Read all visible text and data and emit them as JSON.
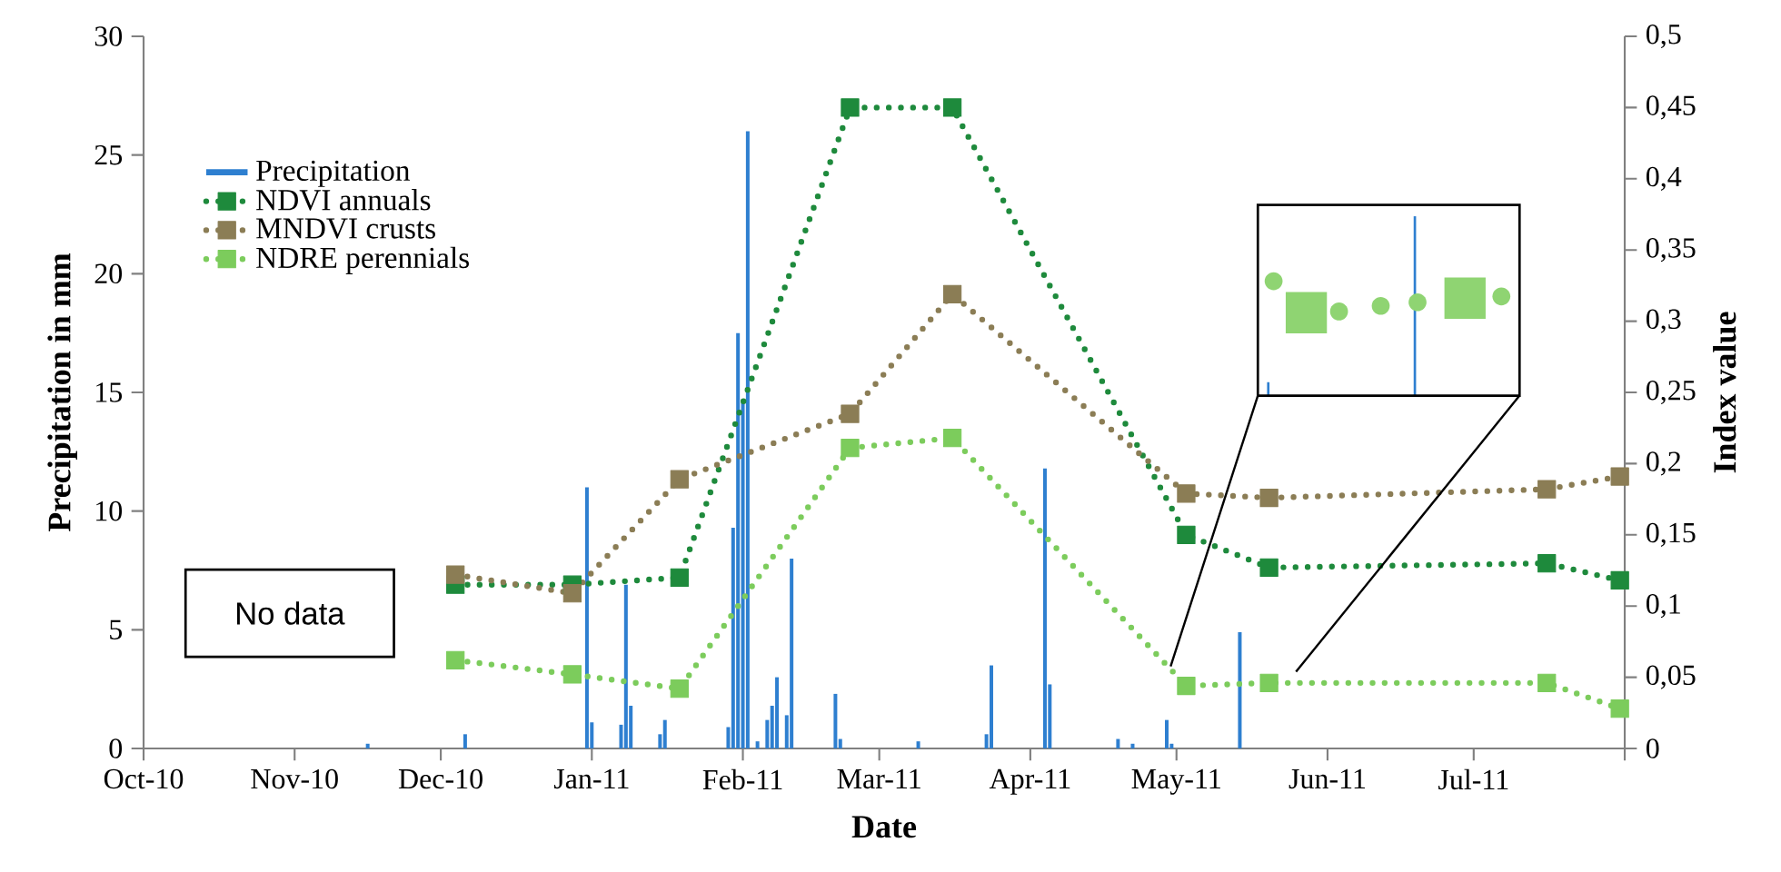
{
  "chart_data": {
    "type": "bar",
    "xlabel": "Date",
    "ylabel": "Precipitation in mm",
    "y2label": "Index value",
    "xlim": [
      "2010-10-01",
      "2011-08-01"
    ],
    "xticks": [
      {
        "value": "2010-10-01",
        "label": "Oct-10"
      },
      {
        "value": "2010-11-01",
        "label": "Nov-10"
      },
      {
        "value": "2010-12-01",
        "label": "Dec-10"
      },
      {
        "value": "2011-01-01",
        "label": "Jan-11"
      },
      {
        "value": "2011-02-01",
        "label": "Feb-11"
      },
      {
        "value": "2011-03-01",
        "label": "Mar-11"
      },
      {
        "value": "2011-04-01",
        "label": "Apr-11"
      },
      {
        "value": "2011-05-01",
        "label": "May-11"
      },
      {
        "value": "2011-06-01",
        "label": "Jun-11"
      },
      {
        "value": "2011-07-01",
        "label": "Jul-11"
      },
      {
        "value": "2011-08-01",
        "label": null
      }
    ],
    "ylim": [
      0,
      30
    ],
    "yticks": [
      0,
      5,
      10,
      15,
      20,
      25,
      30
    ],
    "y2lim": [
      0,
      0.5
    ],
    "y2ticks": [
      0,
      {
        "value": 0.05,
        "label": "0,05"
      },
      {
        "value": 0.1,
        "label": "0,1"
      },
      {
        "value": 0.15,
        "label": "0,15"
      },
      {
        "value": 0.2,
        "label": "0,2"
      },
      {
        "value": 0.25,
        "label": "0,25"
      },
      {
        "value": 0.3,
        "label": "0,3"
      },
      {
        "value": 0.35,
        "label": "0,35"
      },
      {
        "value": 0.4,
        "label": "0,4"
      },
      {
        "value": 0.45,
        "label": "0,45"
      },
      {
        "value": 0.5,
        "label": "0,5"
      }
    ],
    "legend": "top left",
    "annotations": [
      "No data"
    ],
    "series": [
      {
        "name": "Precipitation",
        "color": "#2e7fd0",
        "x": [
          "2010-11-16",
          "2010-12-06",
          "2010-12-31",
          "2011-01-01",
          "2011-01-07",
          "2011-01-08",
          "2011-01-09",
          "2011-01-15",
          "2011-01-16",
          "2011-01-29",
          "2011-01-30",
          "2011-01-31",
          "2011-02-01",
          "2011-02-02",
          "2011-02-04",
          "2011-02-06",
          "2011-02-07",
          "2011-02-08",
          "2011-02-10",
          "2011-02-11",
          "2011-02-20",
          "2011-02-21",
          "2011-03-09",
          "2011-03-23",
          "2011-03-24",
          "2011-04-04",
          "2011-04-05",
          "2011-04-19",
          "2011-04-22",
          "2011-04-29",
          "2011-04-30",
          "2011-05-14"
        ],
        "values": [
          0.2,
          0.6,
          11.0,
          1.1,
          1.0,
          6.9,
          1.8,
          0.6,
          1.2,
          0.9,
          9.3,
          17.5,
          14.7,
          26.0,
          0.3,
          1.2,
          1.8,
          3.0,
          1.4,
          8.0,
          2.3,
          0.4,
          0.3,
          0.6,
          3.5,
          11.8,
          2.7,
          0.4,
          0.2,
          1.2,
          0.2,
          4.9
        ]
      },
      {
        "name": "NDVI annuals",
        "type": "line",
        "axis": "y2",
        "color": "#1e8a3c",
        "marker": "square",
        "line_style": "dotted",
        "x": [
          "2010-12-04",
          "2010-12-28",
          "2011-01-19",
          "2011-02-23",
          "2011-03-16",
          "2011-05-03",
          "2011-05-20",
          "2011-07-16",
          "2011-07-31"
        ],
        "values": [
          0.115,
          0.115,
          0.12,
          0.45,
          0.45,
          0.15,
          0.127,
          0.13,
          0.118
        ]
      },
      {
        "name": "MNDVI crusts",
        "type": "line",
        "axis": "y2",
        "color": "#8b7d55",
        "marker": "square",
        "line_style": "dotted",
        "x": [
          "2010-12-04",
          "2010-12-28",
          "2011-01-19",
          "2011-02-23",
          "2011-03-16",
          "2011-05-03",
          "2011-05-20",
          "2011-07-16",
          "2011-07-31"
        ],
        "values": [
          0.122,
          0.109,
          0.189,
          0.235,
          0.319,
          0.179,
          0.176,
          0.182,
          0.191
        ]
      },
      {
        "name": "NDRE perennials",
        "type": "line",
        "axis": "y2",
        "color": "#7ccc5c",
        "marker": "square",
        "line_style": "dotted",
        "x": [
          "2010-12-04",
          "2010-12-28",
          "2011-01-19",
          "2011-02-23",
          "2011-03-16",
          "2011-05-03",
          "2011-05-20",
          "2011-07-16",
          "2011-07-31"
        ],
        "values": [
          0.062,
          0.052,
          0.042,
          0.211,
          0.218,
          0.044,
          0.046,
          0.046,
          0.028
        ]
      }
    ]
  }
}
